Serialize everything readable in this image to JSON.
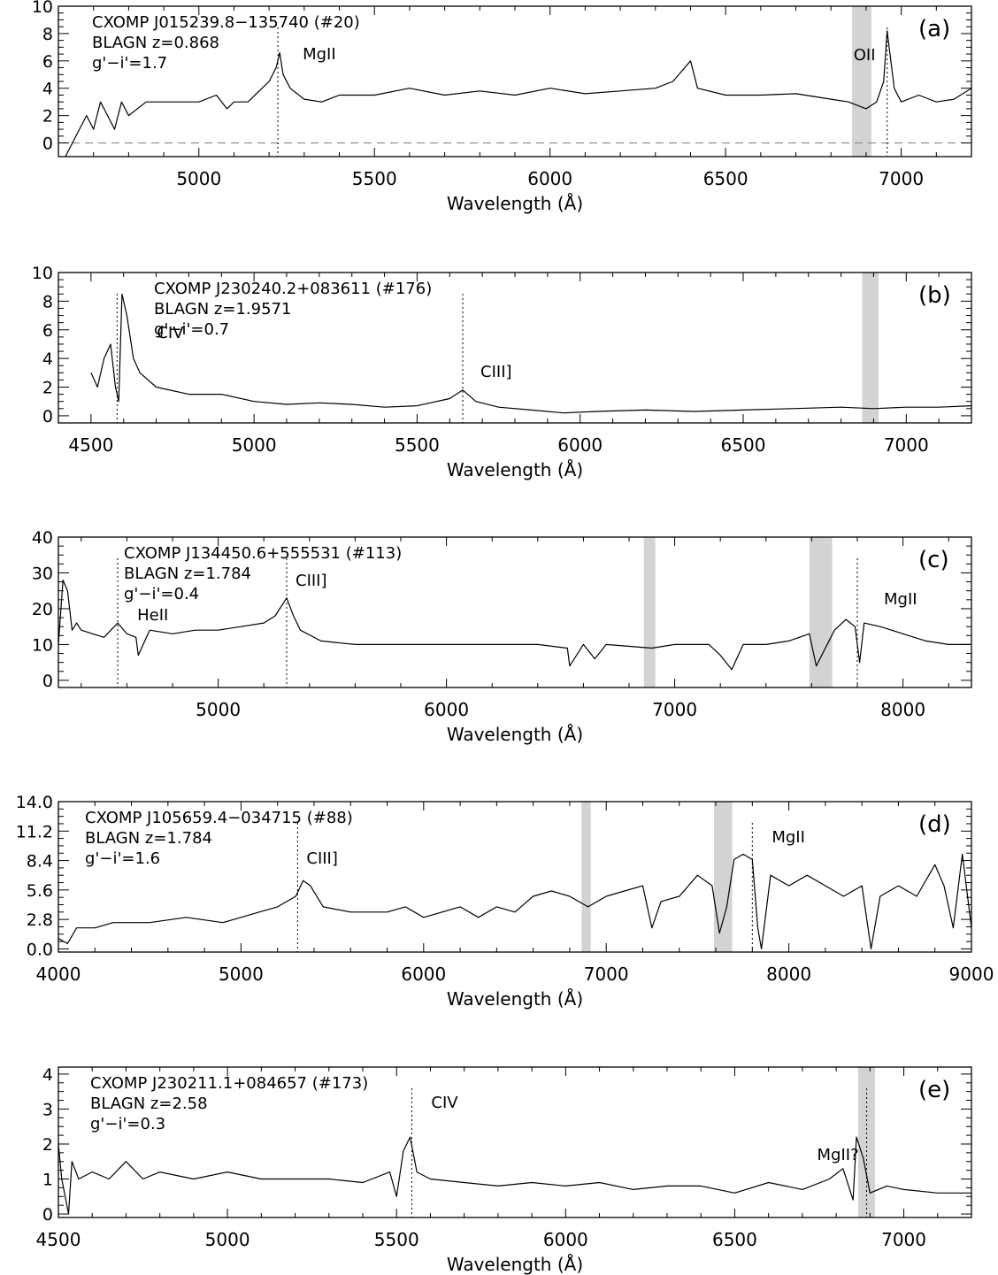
{
  "chart_data": [
    {
      "type": "line",
      "panel_label": "(a)",
      "info": [
        "CXOMP J015239.8−135740 (#20)",
        "BLAGN z=0.868",
        "g'−i'=1.7"
      ],
      "xlabel": "Wavelength (Å)",
      "ylabel": "",
      "xlim": [
        4600,
        7200
      ],
      "ylim": [
        -1,
        10
      ],
      "xticks": [
        5000,
        5500,
        6000,
        6500,
        7000
      ],
      "yticks": [
        0,
        2,
        4,
        6,
        8,
        10
      ],
      "ytick_labels": [
        "0",
        "2",
        "4",
        "6",
        "8",
        "10"
      ],
      "zero_line": true,
      "grid": false,
      "bands": [
        [
          6860,
          6915
        ]
      ],
      "lines": [
        {
          "x": 5225,
          "label": "MgII"
        },
        {
          "x": 6960,
          "label": "OII"
        }
      ],
      "series": [
        {
          "x": [
            4620,
            4640,
            4660,
            4680,
            4700,
            4720,
            4740,
            4760,
            4780,
            4800,
            4850,
            4900,
            4950,
            5000,
            5050,
            5080,
            5100,
            5140,
            5180,
            5200,
            5220,
            5230,
            5240,
            5260,
            5300,
            5350,
            5400,
            5500,
            5600,
            5700,
            5800,
            5900,
            6000,
            6100,
            6200,
            6300,
            6350,
            6400,
            6420,
            6500,
            6600,
            6700,
            6800,
            6850,
            6900,
            6930,
            6950,
            6960,
            6980,
            7000,
            7050,
            7100,
            7150,
            7200
          ],
          "values": [
            -1,
            0,
            1,
            2,
            1,
            3,
            2,
            1,
            3,
            2,
            3,
            3,
            3,
            3,
            3.5,
            2.5,
            3,
            3,
            4,
            4.5,
            5.5,
            6.6,
            5,
            4,
            3.2,
            3,
            3.5,
            3.5,
            4,
            3.5,
            3.8,
            3.5,
            4,
            3.6,
            3.8,
            4,
            4.5,
            6,
            4,
            3.5,
            3.5,
            3.6,
            3.2,
            3,
            2.5,
            3,
            4.5,
            8.2,
            4,
            3,
            3.5,
            3,
            3.2,
            4
          ]
        }
      ]
    },
    {
      "type": "line",
      "panel_label": "(b)",
      "info": [
        "CXOMP J230240.2+083611 (#176)",
        "BLAGN z=1.9571",
        "g'−i'=0.7"
      ],
      "xlabel": "Wavelength (Å)",
      "ylabel": "",
      "xlim": [
        4400,
        7200
      ],
      "ylim": [
        -0.5,
        10
      ],
      "xticks": [
        4500,
        5000,
        5500,
        6000,
        6500,
        7000
      ],
      "yticks": [
        0,
        2,
        4,
        6,
        8,
        10
      ],
      "ytick_labels": [
        "0",
        "2",
        "4",
        "6",
        "8",
        "10"
      ],
      "zero_line": false,
      "grid": false,
      "bands": [
        [
          6865,
          6915
        ]
      ],
      "lines": [
        {
          "x": 4580,
          "label": "CIV"
        },
        {
          "x": 5640,
          "label": "CIII]"
        }
      ],
      "series": [
        {
          "x": [
            4500,
            4520,
            4540,
            4560,
            4575,
            4585,
            4595,
            4610,
            4630,
            4650,
            4700,
            4800,
            4900,
            5000,
            5100,
            5200,
            5300,
            5400,
            5500,
            5600,
            5640,
            5680,
            5750,
            5850,
            5950,
            6050,
            6200,
            6350,
            6500,
            6650,
            6800,
            6900,
            7000,
            7100,
            7200
          ],
          "values": [
            3,
            2,
            4,
            5,
            2,
            1,
            8.5,
            7,
            4,
            3,
            2,
            1.5,
            1.5,
            1,
            0.8,
            0.9,
            0.8,
            0.6,
            0.7,
            1.2,
            1.8,
            1,
            0.6,
            0.4,
            0.2,
            0.3,
            0.4,
            0.3,
            0.4,
            0.5,
            0.6,
            0.5,
            0.6,
            0.6,
            0.7
          ]
        }
      ]
    },
    {
      "type": "line",
      "panel_label": "(c)",
      "info": [
        "CXOMP J134450.6+555531 (#113)",
        "BLAGN z=1.784",
        "g'−i'=0.4"
      ],
      "xlabel": "Wavelength (Å)",
      "ylabel": "",
      "xlim": [
        4300,
        8300
      ],
      "ylim": [
        -2,
        40
      ],
      "xticks": [
        5000,
        6000,
        7000,
        8000
      ],
      "yticks": [
        0,
        10,
        20,
        30,
        40
      ],
      "ytick_labels": [
        "0",
        "10",
        "20",
        "30",
        "40"
      ],
      "zero_line": false,
      "grid": false,
      "bands": [
        [
          6865,
          6915
        ],
        [
          7590,
          7690
        ]
      ],
      "lines": [
        {
          "x": 4560,
          "label": "HeII"
        },
        {
          "x": 5300,
          "label": "CIII]"
        },
        {
          "x": 7800,
          "label": "MgII"
        }
      ],
      "series": [
        {
          "x": [
            4300,
            4320,
            4340,
            4360,
            4380,
            4400,
            4450,
            4500,
            4560,
            4600,
            4640,
            4650,
            4700,
            4800,
            4900,
            5000,
            5100,
            5200,
            5250,
            5300,
            5330,
            5360,
            5450,
            5600,
            5800,
            6000,
            6200,
            6400,
            6530,
            6540,
            6600,
            6650,
            6700,
            6900,
            7000,
            7150,
            7200,
            7250,
            7300,
            7400,
            7500,
            7590,
            7620,
            7700,
            7750,
            7790,
            7810,
            7830,
            7900,
            8000,
            8100,
            8200,
            8300
          ],
          "values": [
            10,
            28,
            25,
            14,
            16,
            14,
            13,
            12,
            16,
            13,
            12,
            7,
            14,
            13,
            14,
            14,
            15,
            16,
            18,
            23,
            18,
            14,
            11,
            10,
            10,
            10,
            10,
            10,
            9,
            4,
            10,
            6,
            10,
            9,
            10,
            10,
            7,
            3,
            10,
            10,
            11,
            13,
            4,
            14,
            17,
            15,
            5,
            16,
            15,
            13,
            11,
            10,
            10
          ]
        }
      ]
    },
    {
      "type": "line",
      "panel_label": "(d)",
      "info": [
        "CXOMP J105659.4−034715 (#88)",
        "BLAGN z=1.784",
        "g'−i'=1.6"
      ],
      "xlabel": "Wavelength (Å)",
      "ylabel": "",
      "xlim": [
        4000,
        9000
      ],
      "ylim": [
        -0.3,
        14
      ],
      "xticks": [
        4000,
        5000,
        6000,
        7000,
        8000,
        9000
      ],
      "yticks": [
        0,
        2.8,
        5.6,
        8.4,
        11.2,
        14
      ],
      "ytick_labels": [
        "0.0",
        "2.8",
        "5.6",
        "8.4",
        "11.2",
        "14.0"
      ],
      "zero_line": false,
      "grid": false,
      "bands": [
        [
          6865,
          6915
        ],
        [
          7590,
          7690
        ]
      ],
      "lines": [
        {
          "x": 5310,
          "label": "CIII]"
        },
        {
          "x": 7800,
          "label": "MgII"
        }
      ],
      "series": [
        {
          "x": [
            4000,
            4050,
            4100,
            4200,
            4300,
            4500,
            4700,
            4900,
            5000,
            5100,
            5200,
            5300,
            5340,
            5380,
            5450,
            5600,
            5800,
            5900,
            6000,
            6200,
            6300,
            6400,
            6500,
            6600,
            6700,
            6800,
            6900,
            7000,
            7100,
            7200,
            7250,
            7300,
            7400,
            7500,
            7580,
            7620,
            7660,
            7700,
            7750,
            7800,
            7830,
            7850,
            7900,
            8000,
            8100,
            8200,
            8300,
            8400,
            8450,
            8500,
            8600,
            8700,
            8800,
            8850,
            8900,
            8950,
            9000
          ],
          "values": [
            1,
            0.5,
            2,
            2,
            2.5,
            2.5,
            3,
            2.5,
            3,
            3.5,
            4,
            5,
            6.5,
            6,
            4,
            3.5,
            3.5,
            4,
            3,
            4,
            3,
            4,
            3.5,
            5,
            5.5,
            5,
            4,
            5,
            5.5,
            6,
            2,
            4.5,
            5,
            7,
            6,
            1.5,
            4,
            8.5,
            9,
            8.5,
            2,
            0,
            7,
            6,
            7,
            6,
            5,
            6,
            0,
            5,
            6,
            5,
            8,
            6,
            2,
            9,
            2
          ]
        }
      ]
    },
    {
      "type": "line",
      "panel_label": "(e)",
      "info": [
        "CXOMP J230211.1+084657 (#173)",
        "BLAGN z=2.58",
        "g'−i'=0.3"
      ],
      "xlabel": "Wavelength (Å)",
      "ylabel": "",
      "xlim": [
        4500,
        7200
      ],
      "ylim": [
        -0.1,
        4.2
      ],
      "xticks": [
        4500,
        5000,
        5500,
        6000,
        6500,
        7000
      ],
      "yticks": [
        0,
        1,
        2,
        3,
        4
      ],
      "ytick_labels": [
        "0",
        "1",
        "2",
        "3",
        "4"
      ],
      "zero_line": false,
      "grid": false,
      "bands": [
        [
          6865,
          6915
        ]
      ],
      "lines": [
        {
          "x": 5545,
          "label": "CIV"
        },
        {
          "x": 6890,
          "label": "MgII?"
        }
      ],
      "series": [
        {
          "x": [
            4500,
            4510,
            4530,
            4540,
            4560,
            4600,
            4650,
            4700,
            4750,
            4800,
            4900,
            5000,
            5100,
            5200,
            5300,
            5400,
            5480,
            5500,
            5520,
            5540,
            5560,
            5600,
            5700,
            5800,
            5900,
            6000,
            6100,
            6200,
            6300,
            6400,
            6500,
            6600,
            6700,
            6780,
            6820,
            6850,
            6860,
            6880,
            6900,
            6950,
            7000,
            7100,
            7200
          ],
          "values": [
            2,
            1,
            0,
            1.5,
            1,
            1.2,
            1,
            1.5,
            1,
            1.2,
            1,
            1.2,
            1,
            1,
            1,
            0.9,
            1.2,
            0.5,
            1.8,
            2.2,
            1.2,
            1,
            0.9,
            0.8,
            0.9,
            0.8,
            0.9,
            0.7,
            0.8,
            0.8,
            0.6,
            0.9,
            0.7,
            1,
            1.3,
            0.4,
            2.2,
            1.6,
            0.6,
            0.8,
            0.7,
            0.6,
            0.6
          ]
        }
      ]
    }
  ]
}
